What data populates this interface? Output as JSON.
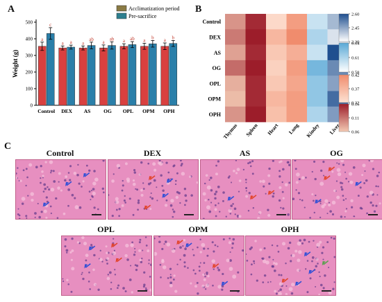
{
  "panels": {
    "a_label": "A",
    "b_label": "B",
    "c_label": "C"
  },
  "colors": {
    "acclimatization": "#d9403f",
    "pre_sacrifice": "#2a7fa9",
    "legend_accl": "#8a7a44",
    "legend_pre": "#2d7f8f",
    "sig_letter": "#c0392b",
    "tissue": "#e78fc0",
    "arrow_red": "#e2452c",
    "arrow_blue": "#3150d6",
    "arrow_green": "#5aa050"
  },
  "chart_data": [
    {
      "type": "bar",
      "panel": "A",
      "categories": [
        "Control",
        "DEX",
        "AS",
        "OG",
        "OPL",
        "OPM",
        "OPH"
      ],
      "ylabel": "Weight (g)",
      "ylim": [
        0,
        500
      ],
      "yticks": [
        0,
        100,
        200,
        300,
        400,
        500
      ],
      "legend_position": "top-right",
      "series": [
        {
          "name": "Acclimatization period",
          "values": [
            355,
            345,
            345,
            345,
            355,
            355,
            355
          ],
          "errors": [
            25,
            12,
            12,
            18,
            15,
            18,
            20
          ],
          "letters": [
            "a",
            "a",
            "a",
            "a",
            "a",
            "a",
            "a"
          ]
        },
        {
          "name": "Pre-sacrifice",
          "values": [
            432,
            350,
            360,
            360,
            365,
            370,
            372
          ],
          "errors": [
            35,
            12,
            20,
            22,
            18,
            20,
            18
          ],
          "letters": [
            "c",
            "a",
            "ab",
            "ab",
            "ab",
            "b",
            "b"
          ]
        }
      ]
    },
    {
      "type": "heatmap",
      "panel": "B",
      "rows": [
        "Control",
        "DEX",
        "AS",
        "OG",
        "OPL",
        "OPM",
        "OPH"
      ],
      "columns": [
        "Thymus",
        "Spleen",
        "Heart",
        "Lung",
        "Kindey",
        "Liver"
      ],
      "values": [
        [
          0.1,
          0.18,
          0.33,
          0.4,
          0.6,
          2.42
        ],
        [
          0.12,
          0.19,
          0.37,
          0.42,
          0.61,
          2.35
        ],
        [
          0.09,
          0.18,
          0.35,
          0.38,
          0.6,
          2.62
        ],
        [
          0.13,
          0.19,
          0.34,
          0.4,
          0.63,
          2.5
        ],
        [
          0.08,
          0.18,
          0.35,
          0.39,
          0.62,
          2.46
        ],
        [
          0.07,
          0.18,
          0.37,
          0.4,
          0.62,
          2.55
        ],
        [
          0.1,
          0.19,
          0.36,
          0.4,
          0.61,
          2.47
        ]
      ],
      "colorbars": [
        {
          "ticks": [
            "2.60",
            "2.45",
            "2.30"
          ],
          "range": [
            2.3,
            2.6
          ],
          "low": "#ffffff",
          "high": "#1f4f8f"
        },
        {
          "ticks": [
            "0.64",
            "0.61",
            "0.58"
          ],
          "range": [
            0.58,
            0.64
          ],
          "low": "#ffffff",
          "high": "#5aa9d6"
        },
        {
          "ticks": [
            "0.42",
            "0.37",
            "0.32"
          ],
          "range": [
            0.32,
            0.42
          ],
          "low": "#fde2d3",
          "high": "#f08c6d"
        },
        {
          "ticks": [
            "0.16",
            "0.11",
            "0.06"
          ],
          "range": [
            0.06,
            0.19
          ],
          "low": "#f3c9b3",
          "high": "#9c1d2a"
        }
      ]
    }
  ],
  "micrographs": [
    {
      "title": "Control",
      "arrows": [
        {
          "c": "blue",
          "fx": 0.55,
          "fy": 0.45
        },
        {
          "c": "blue",
          "fx": 0.3,
          "fy": 0.8
        },
        {
          "c": "blue",
          "fx": 0.75,
          "fy": 0.3
        }
      ]
    },
    {
      "title": "DEX",
      "arrows": [
        {
          "c": "red",
          "fx": 0.45,
          "fy": 0.35
        },
        {
          "c": "blue",
          "fx": 0.65,
          "fy": 0.4
        },
        {
          "c": "blue",
          "fx": 0.6,
          "fy": 0.65
        },
        {
          "c": "red",
          "fx": 0.4,
          "fy": 0.85
        }
      ]
    },
    {
      "title": "AS",
      "arrows": [
        {
          "c": "red",
          "fx": 0.75,
          "fy": 0.6
        },
        {
          "c": "blue",
          "fx": 0.3,
          "fy": 0.7
        },
        {
          "c": "red",
          "fx": 0.55,
          "fy": 0.68
        }
      ]
    },
    {
      "title": "OG",
      "arrows": [
        {
          "c": "red",
          "fx": 0.4,
          "fy": 0.2
        },
        {
          "c": "red",
          "fx": 0.35,
          "fy": 0.35
        },
        {
          "c": "blue",
          "fx": 0.7,
          "fy": 0.45
        },
        {
          "c": "blue",
          "fx": 0.25,
          "fy": 0.75
        }
      ]
    },
    {
      "title": "OPL",
      "arrows": [
        {
          "c": "blue",
          "fx": 0.3,
          "fy": 0.25
        },
        {
          "c": "red",
          "fx": 0.55,
          "fy": 0.2
        },
        {
          "c": "blue",
          "fx": 0.25,
          "fy": 0.55
        },
        {
          "c": "red",
          "fx": 0.6,
          "fy": 0.45
        }
      ]
    },
    {
      "title": "OPM",
      "arrows": [
        {
          "c": "red",
          "fx": 0.25,
          "fy": 0.15
        },
        {
          "c": "blue",
          "fx": 0.35,
          "fy": 0.2
        },
        {
          "c": "red",
          "fx": 0.65,
          "fy": 0.55
        },
        {
          "c": "blue",
          "fx": 0.75,
          "fy": 0.85
        }
      ]
    },
    {
      "title": "OPH",
      "arrows": [
        {
          "c": "blue",
          "fx": 0.65,
          "fy": 0.35
        },
        {
          "c": "blue",
          "fx": 0.7,
          "fy": 0.65
        },
        {
          "c": "green",
          "fx": 0.85,
          "fy": 0.5
        },
        {
          "c": "red",
          "fx": 0.4,
          "fy": 0.8
        },
        {
          "c": "blue",
          "fx": 0.55,
          "fy": 0.85
        }
      ]
    }
  ]
}
